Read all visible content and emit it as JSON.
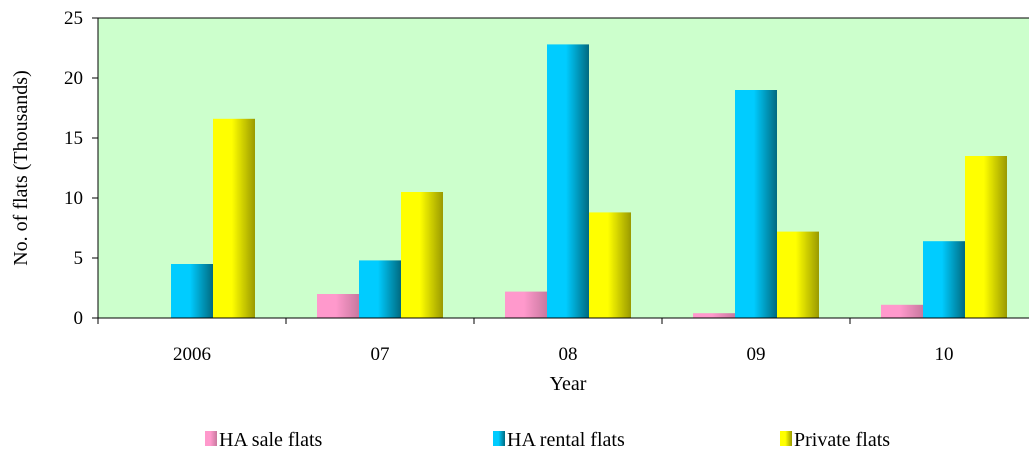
{
  "chart_data": {
    "type": "bar",
    "title": "",
    "xlabel": "Year",
    "ylabel": "No. of flats (Thousands)",
    "categories": [
      "2006",
      "07",
      "08",
      "09",
      "10"
    ],
    "ylim": [
      0,
      25
    ],
    "yticks": [
      0,
      5,
      10,
      15,
      20,
      25
    ],
    "grid": false,
    "legend_position": "bottom",
    "plot_background": "#ccffcc",
    "series": [
      {
        "name": "HA sale flats",
        "values": [
          0,
          2.0,
          2.2,
          0.4,
          1.1
        ],
        "color": "#ff99cc"
      },
      {
        "name": "HA rental flats",
        "values": [
          4.5,
          4.8,
          22.8,
          19.0,
          6.4
        ],
        "color": "#00ccff"
      },
      {
        "name": "Private flats",
        "values": [
          16.6,
          10.5,
          8.8,
          7.2,
          13.5
        ],
        "color": "#ffff00"
      }
    ]
  }
}
